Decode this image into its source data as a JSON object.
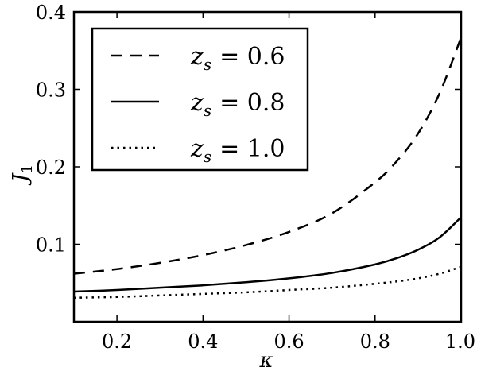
{
  "chart_data": {
    "type": "line",
    "xlabel": "κ",
    "ylabel": "J",
    "ylabel_sub": "1",
    "xlim": [
      0.1,
      1.0
    ],
    "ylim": [
      0.0,
      0.4
    ],
    "xticks": [
      0.2,
      0.4,
      0.6,
      0.8,
      1.0
    ],
    "xtick_labels": [
      "0.2",
      "0.4",
      "0.6",
      "0.8",
      "1.0"
    ],
    "yticks": [
      0.1,
      0.2,
      0.3,
      0.4
    ],
    "ytick_labels": [
      "0.1",
      "0.2",
      "0.3",
      "0.4"
    ],
    "grid": false,
    "legend_position": "top-left",
    "x": [
      0.1,
      0.2,
      0.3,
      0.4,
      0.5,
      0.6,
      0.7,
      0.8,
      0.85,
      0.9,
      0.95,
      1.0
    ],
    "series": [
      {
        "legend_var": "z",
        "legend_sub": "s",
        "legend_value": "= 0.6",
        "style": "dashed",
        "values": [
          0.062,
          0.068,
          0.076,
          0.086,
          0.099,
          0.116,
          0.14,
          0.18,
          0.207,
          0.243,
          0.295,
          0.367
        ]
      },
      {
        "legend_var": "z",
        "legend_sub": "s",
        "legend_value": "= 0.8",
        "style": "solid",
        "values": [
          0.039,
          0.041,
          0.044,
          0.047,
          0.051,
          0.056,
          0.063,
          0.074,
          0.082,
          0.093,
          0.109,
          0.135
        ]
      },
      {
        "legend_var": "z",
        "legend_sub": "s",
        "legend_value": "= 1.0",
        "style": "dotted",
        "values": [
          0.031,
          0.032,
          0.034,
          0.036,
          0.038,
          0.041,
          0.044,
          0.049,
          0.052,
          0.056,
          0.062,
          0.071
        ]
      }
    ],
    "line_color": "#000000"
  }
}
